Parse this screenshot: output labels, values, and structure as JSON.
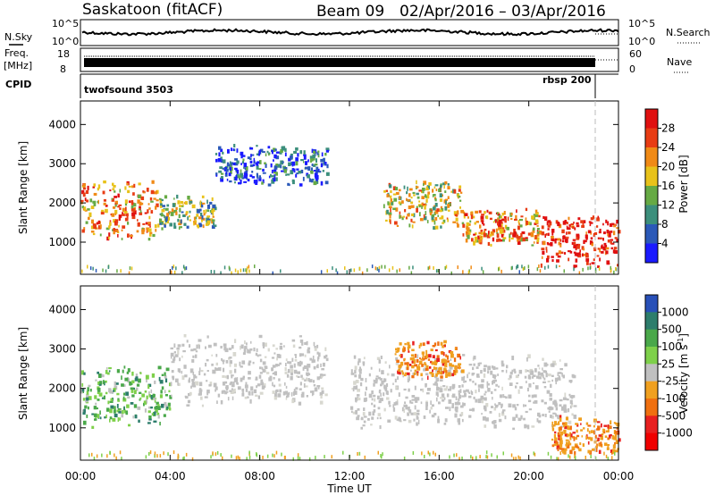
{
  "header": {
    "station": "Saskatoon (fitACF)",
    "beam": "Beam 09",
    "dates": "02/Apr/2016 – 03/Apr/2016"
  },
  "top_panels": {
    "nsky_label": "N.Sky",
    "nsky_ticks": [
      "10^5",
      "10^0"
    ],
    "nsearch_label": "N.Search",
    "nsearch_ticks": [
      "10^5",
      "10^0"
    ],
    "freq_label": "Freq.",
    "freq_unit": "[MHz]",
    "freq_ticks": [
      "18",
      "8"
    ],
    "nave_label": "Nave",
    "nave_ticks": [
      "60",
      "0"
    ],
    "cpid_label": "CPID",
    "cpid_modes": [
      "twofsound 3503",
      "rbsp 200"
    ]
  },
  "chart_data": [
    {
      "type": "heatmap",
      "name": "power",
      "ylabel": "Slant Range [km]",
      "yticks": [
        1000,
        2000,
        3000,
        4000
      ],
      "ylim": [
        180,
        4600
      ],
      "xlim_hours": [
        0,
        24
      ],
      "colorbar": {
        "label": "Power [dB]",
        "ticks": [
          "4",
          "8",
          "12",
          "16",
          "20",
          "24",
          "28"
        ],
        "colors": [
          "#1a1aff",
          "#2b59b8",
          "#3c8f7c",
          "#66aa44",
          "#e8c21a",
          "#f08a16",
          "#e83c14",
          "#e01010"
        ]
      },
      "echo_regions": [
        {
          "t": [
            0.0,
            3.5
          ],
          "range_km": [
            1000,
            2600
          ],
          "level": 5
        },
        {
          "t": [
            3.5,
            6.0
          ],
          "range_km": [
            1300,
            2200
          ],
          "level": 3
        },
        {
          "t": [
            6.0,
            11.0
          ],
          "range_km": [
            2400,
            3500
          ],
          "level": 1
        },
        {
          "t": [
            13.5,
            17.0
          ],
          "range_km": [
            1300,
            2600
          ],
          "level": 4
        },
        {
          "t": [
            17.0,
            20.5
          ],
          "range_km": [
            900,
            1900
          ],
          "level": 5
        },
        {
          "t": [
            20.5,
            24.0
          ],
          "range_km": [
            250,
            1800
          ],
          "level": 7
        }
      ]
    },
    {
      "type": "heatmap",
      "name": "velocity",
      "ylabel": "Slant Range [km]",
      "xlabel": "Time UT",
      "yticks": [
        1000,
        2000,
        3000,
        4000
      ],
      "xticks": [
        "00:00",
        "04:00",
        "08:00",
        "12:00",
        "16:00",
        "20:00",
        "00:00"
      ],
      "ylim": [
        180,
        4600
      ],
      "xlim_hours": [
        0,
        24
      ],
      "colorbar": {
        "label": "Velocity [m s^-1]",
        "ticks": [
          "1000",
          "500",
          "100",
          "25",
          "-25",
          "-100",
          "-500",
          "-1000"
        ],
        "colors": [
          "#2850b8",
          "#2d7d6c",
          "#4aa84a",
          "#7ed04a",
          "#c0c0c0",
          "#f0a020",
          "#f07010",
          "#e82020",
          "#f00000"
        ]
      },
      "echo_regions": [
        {
          "t": [
            0.0,
            4.0
          ],
          "range_km": [
            1000,
            2600
          ],
          "kind": "mixed-green"
        },
        {
          "t": [
            4.0,
            11.0
          ],
          "range_km": [
            1500,
            3400
          ],
          "kind": "ground-gray"
        },
        {
          "t": [
            12.0,
            22.0
          ],
          "range_km": [
            900,
            2900
          ],
          "kind": "ground-gray"
        },
        {
          "t": [
            14.0,
            17.0
          ],
          "range_km": [
            2200,
            3200
          ],
          "kind": "orange"
        },
        {
          "t": [
            21.0,
            24.0
          ],
          "range_km": [
            250,
            1300
          ],
          "kind": "orange"
        }
      ]
    }
  ]
}
